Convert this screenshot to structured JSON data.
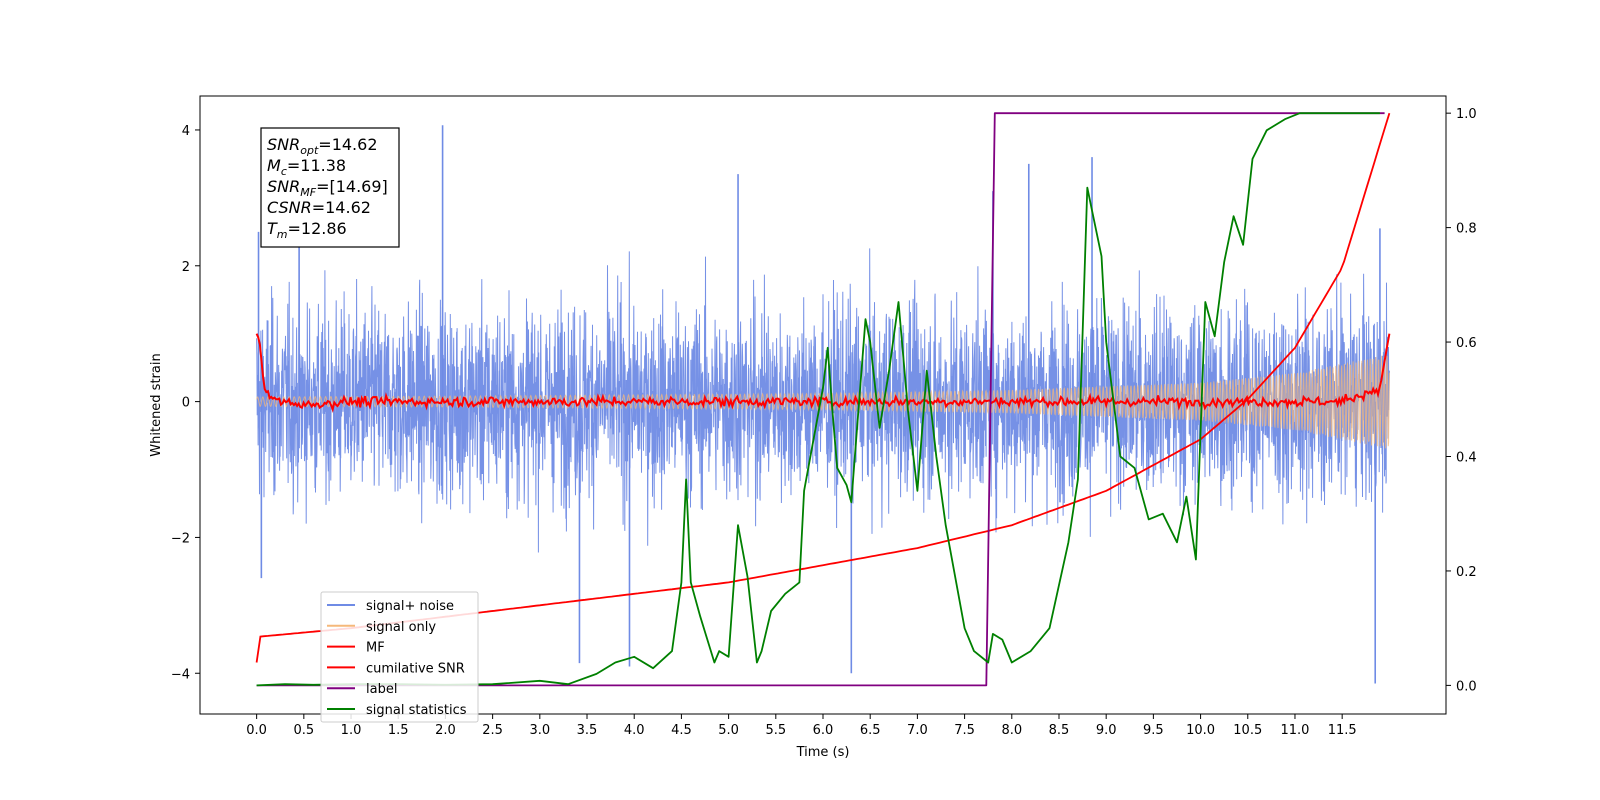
{
  "chart_data": {
    "type": "line",
    "xlabel": "Time (s)",
    "ylabel": "Whitened strain",
    "xlim": [
      -0.6,
      12.6
    ],
    "ylim": [
      -4.6,
      4.5
    ],
    "y2lim": [
      -0.05,
      1.03
    ],
    "x_ticks": [
      "0.0",
      "0.5",
      "1.0",
      "1.5",
      "2.0",
      "2.5",
      "3.0",
      "3.5",
      "4.0",
      "4.5",
      "5.0",
      "5.5",
      "6.0",
      "6.5",
      "7.0",
      "7.5",
      "8.0",
      "8.5",
      "9.0",
      "9.5",
      "10.0",
      "10.5",
      "11.0",
      "11.5"
    ],
    "y_ticks": [
      "4",
      "2",
      "0",
      "−2",
      "−4"
    ],
    "y2_ticks": [
      "1.0",
      "0.8",
      "0.6",
      "0.4",
      "0.2",
      "0.0"
    ],
    "legend_position": "lower-left",
    "annotation": {
      "lines": [
        {
          "main": "SNR",
          "sub": "opt",
          "value": "=14.62"
        },
        {
          "main": "M",
          "sub": "c",
          "value": "=11.38"
        },
        {
          "main": "SNR",
          "sub": "MF",
          "value": "=[14.69]"
        },
        {
          "main": "CSNR",
          "sub": "",
          "value": "=14.62"
        },
        {
          "main": "T",
          "sub": "m",
          "value": "=12.86"
        }
      ]
    },
    "series": [
      {
        "name": "signal+ noise",
        "color": "#6f8be5",
        "axis": "left",
        "envelope": {
          "x": [
            0,
            12
          ],
          "typical_amplitude": 1.6,
          "peak_amplitude": 4.1,
          "mean": 0.0
        },
        "spikes": [
          {
            "x": 0.02,
            "y": 2.5
          },
          {
            "x": 0.05,
            "y": -2.6
          },
          {
            "x": 0.45,
            "y": 3.0
          },
          {
            "x": 1.97,
            "y": 4.07
          },
          {
            "x": 3.42,
            "y": -3.85
          },
          {
            "x": 3.95,
            "y": -3.9
          },
          {
            "x": 5.1,
            "y": 3.35
          },
          {
            "x": 6.3,
            "y": -4.0
          },
          {
            "x": 7.8,
            "y": 3.1
          },
          {
            "x": 8.18,
            "y": 3.5
          },
          {
            "x": 8.85,
            "y": 3.6
          },
          {
            "x": 11.85,
            "y": -4.15
          },
          {
            "x": 11.9,
            "y": 2.55
          }
        ]
      },
      {
        "name": "signal only",
        "color": "#f5b87a",
        "axis": "left",
        "chirp_amplitude": {
          "x": [
            0,
            2,
            4,
            6,
            8,
            10,
            11,
            12
          ],
          "y": [
            0.07,
            0.08,
            0.1,
            0.12,
            0.17,
            0.28,
            0.42,
            0.7
          ]
        }
      },
      {
        "name": "MF",
        "color": "#ff0000",
        "axis": "left",
        "x": [
          0,
          0.03,
          0.08,
          0.15,
          0.5,
          1.0,
          2.0,
          4.0,
          6.0,
          8.0,
          10.0,
          11.5,
          11.9,
          11.95,
          12.0
        ],
        "y": [
          1.0,
          0.9,
          0.2,
          0.05,
          -0.05,
          0.0,
          0.0,
          0.0,
          0.0,
          0.0,
          0.0,
          0.0,
          0.2,
          0.6,
          1.0
        ]
      },
      {
        "name": "cumilative SNR",
        "color": "#ff0000",
        "axis": "right",
        "x": [
          0,
          0.02,
          1,
          2,
          3,
          4,
          5,
          6,
          7,
          8,
          9,
          10,
          10.5,
          11,
          11.5,
          12
        ],
        "y": [
          0.04,
          0.085,
          0.1,
          0.12,
          0.14,
          0.16,
          0.18,
          0.21,
          0.24,
          0.28,
          0.34,
          0.43,
          0.5,
          0.59,
          0.73,
          1.0
        ]
      },
      {
        "name": "label",
        "color": "#800080",
        "axis": "right",
        "x": [
          0,
          7.73,
          7.82,
          11.95
        ],
        "y": [
          0.0,
          0.0,
          1.0,
          1.0
        ]
      },
      {
        "name": "signal statistics",
        "color": "#008000",
        "axis": "right",
        "x": [
          0,
          0.3,
          0.6,
          1.0,
          1.5,
          2.0,
          2.5,
          3.0,
          3.3,
          3.6,
          3.8,
          4.0,
          4.2,
          4.4,
          4.5,
          4.55,
          4.6,
          4.7,
          4.85,
          4.9,
          5.0,
          5.1,
          5.2,
          5.3,
          5.35,
          5.45,
          5.6,
          5.75,
          5.8,
          6.0,
          6.05,
          6.1,
          6.15,
          6.25,
          6.3,
          6.45,
          6.5,
          6.6,
          6.7,
          6.8,
          6.9,
          7.0,
          7.1,
          7.2,
          7.3,
          7.5,
          7.6,
          7.75,
          7.8,
          7.9,
          8.0,
          8.2,
          8.4,
          8.6,
          8.7,
          8.8,
          8.85,
          8.95,
          9.0,
          9.15,
          9.3,
          9.45,
          9.6,
          9.75,
          9.85,
          9.95,
          10.05,
          10.15,
          10.25,
          10.35,
          10.45,
          10.55,
          10.7,
          10.9,
          11.05,
          11.3,
          11.6,
          11.9
        ],
        "y": [
          0.0,
          0.002,
          0.001,
          0.002,
          0.002,
          0.001,
          0.002,
          0.008,
          0.002,
          0.02,
          0.04,
          0.05,
          0.03,
          0.06,
          0.18,
          0.36,
          0.18,
          0.12,
          0.04,
          0.06,
          0.05,
          0.28,
          0.19,
          0.04,
          0.06,
          0.13,
          0.16,
          0.18,
          0.34,
          0.52,
          0.59,
          0.48,
          0.38,
          0.35,
          0.32,
          0.64,
          0.6,
          0.45,
          0.55,
          0.67,
          0.48,
          0.34,
          0.55,
          0.4,
          0.28,
          0.1,
          0.06,
          0.04,
          0.09,
          0.08,
          0.04,
          0.06,
          0.1,
          0.25,
          0.36,
          0.87,
          0.83,
          0.75,
          0.6,
          0.4,
          0.38,
          0.29,
          0.3,
          0.25,
          0.33,
          0.22,
          0.67,
          0.61,
          0.74,
          0.82,
          0.77,
          0.92,
          0.97,
          0.99,
          1.0,
          1.0,
          1.0,
          1.0
        ]
      }
    ]
  }
}
